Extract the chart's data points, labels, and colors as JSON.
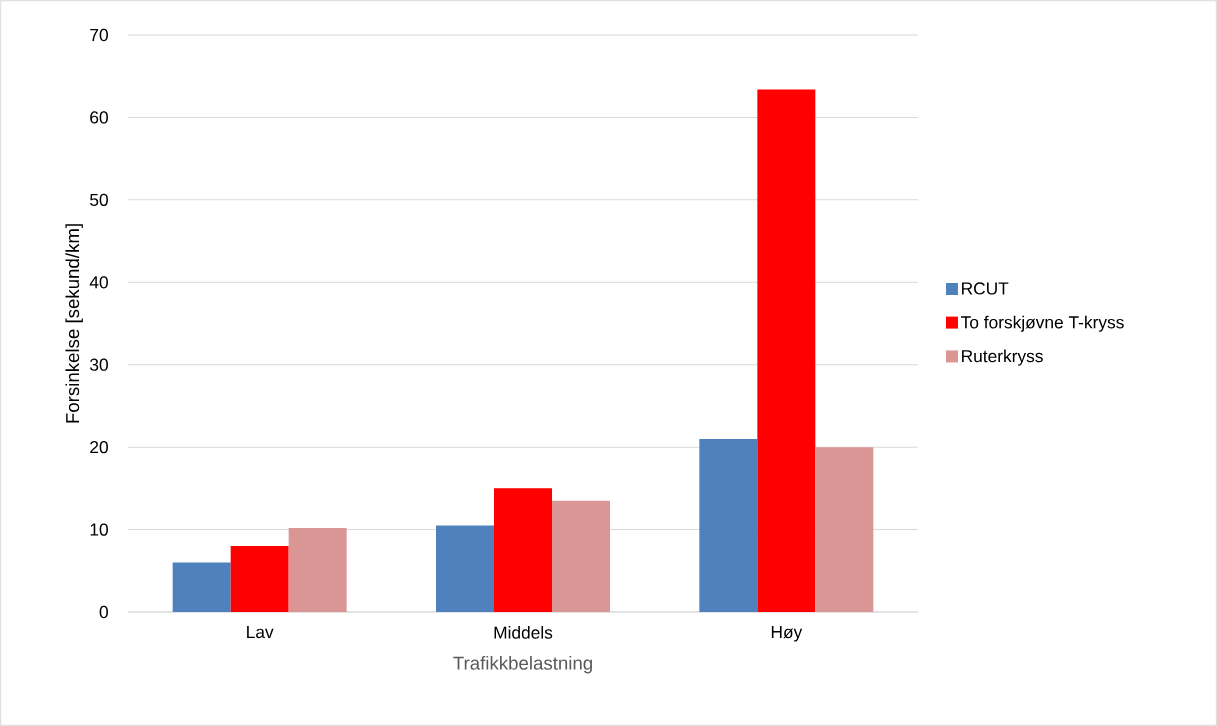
{
  "chart_data": {
    "type": "bar",
    "xlabel": "Trafikkbelastning",
    "ylabel": "Forsinkelse [sekund/km]",
    "categories": [
      "Lav",
      "Middels",
      "Høy"
    ],
    "series": [
      {
        "name": "RCUT",
        "color": "#4f81bd",
        "values": [
          6.0,
          10.5,
          21.0
        ]
      },
      {
        "name": "To forskjøvne T-kryss",
        "color": "#ff0000",
        "values": [
          8.0,
          15.0,
          63.4
        ]
      },
      {
        "name": "Ruterkryss",
        "color": "#d99694",
        "values": [
          10.2,
          13.5,
          20.0
        ]
      }
    ],
    "ylim": [
      0,
      70
    ],
    "yticks": [
      0,
      10,
      20,
      30,
      40,
      50,
      60,
      70
    ],
    "grid": "y",
    "legend": "right"
  }
}
